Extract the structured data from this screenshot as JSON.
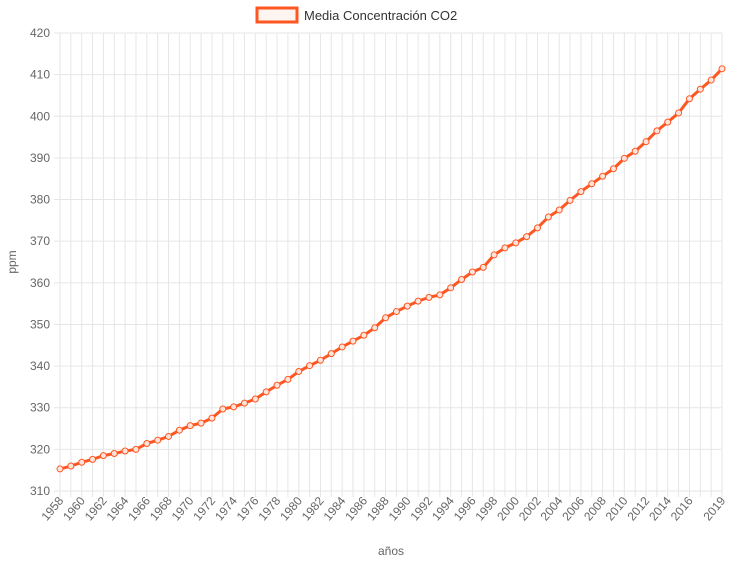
{
  "chart_data": {
    "type": "line",
    "title": "",
    "xlabel": "años",
    "ylabel": "ppm",
    "ylim": [
      310,
      420
    ],
    "y_ticks": [
      310,
      320,
      330,
      340,
      350,
      360,
      370,
      380,
      390,
      400,
      410,
      420
    ],
    "x_tick_labels": [
      "1958",
      "1960",
      "1962",
      "1964",
      "1966",
      "1968",
      "1970",
      "1972",
      "1974",
      "1976",
      "1978",
      "1980",
      "1982",
      "1984",
      "1986",
      "1988",
      "1990",
      "1992",
      "1994",
      "1996",
      "1998",
      "2000",
      "2002",
      "2004",
      "2006",
      "2008",
      "2010",
      "2012",
      "2014",
      "2016",
      "2019"
    ],
    "grid": true,
    "legend_position": "top",
    "colors": {
      "series": "#fe5722"
    },
    "series": [
      {
        "name": "Media Concentración CO2",
        "x": [
          1958,
          1959,
          1960,
          1961,
          1962,
          1963,
          1964,
          1965,
          1966,
          1967,
          1968,
          1969,
          1970,
          1971,
          1972,
          1973,
          1974,
          1975,
          1976,
          1977,
          1978,
          1979,
          1980,
          1981,
          1982,
          1983,
          1984,
          1985,
          1986,
          1987,
          1988,
          1989,
          1990,
          1991,
          1992,
          1993,
          1994,
          1995,
          1996,
          1997,
          1998,
          1999,
          2000,
          2001,
          2002,
          2003,
          2004,
          2005,
          2006,
          2007,
          2008,
          2009,
          2010,
          2011,
          2012,
          2013,
          2014,
          2015,
          2016,
          2017,
          2018,
          2019
        ],
        "values": [
          315.3,
          316.0,
          316.9,
          317.6,
          318.5,
          319.0,
          319.6,
          320.0,
          321.4,
          322.2,
          323.1,
          324.6,
          325.7,
          326.3,
          327.5,
          329.7,
          330.2,
          331.1,
          332.1,
          333.8,
          335.4,
          336.8,
          338.7,
          340.1,
          341.4,
          343.0,
          344.6,
          346.0,
          347.4,
          349.2,
          351.6,
          353.1,
          354.4,
          355.6,
          356.5,
          357.1,
          358.8,
          360.8,
          362.6,
          363.7,
          366.7,
          368.4,
          369.6,
          371.1,
          373.2,
          375.8,
          377.5,
          379.8,
          381.9,
          383.8,
          385.6,
          387.4,
          389.9,
          391.6,
          393.9,
          396.5,
          398.6,
          400.8,
          404.2,
          406.5,
          408.7,
          411.4
        ]
      }
    ]
  }
}
